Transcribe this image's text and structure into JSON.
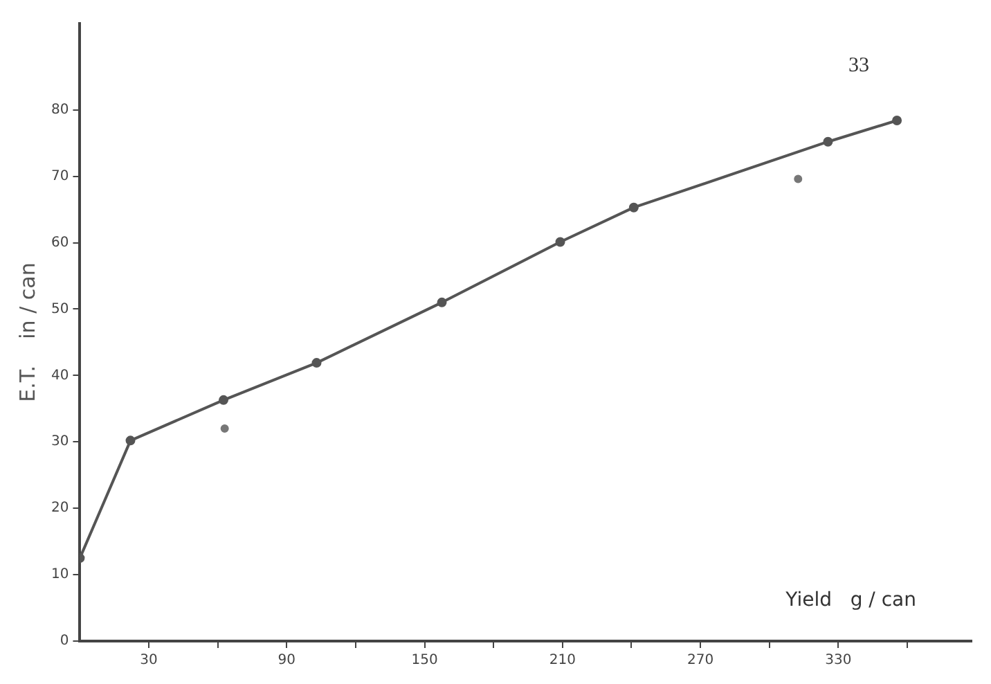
{
  "chart_data": {
    "type": "line",
    "xlabel": "Yield   g / can",
    "ylabel": "E.T.    in / can",
    "annotations": [
      "33"
    ],
    "x": [
      0,
      22,
      62.5,
      103,
      157.5,
      209,
      241,
      325.5,
      355.5
    ],
    "series": [
      {
        "color": "#555555",
        "values": [
          12.5,
          30.2,
          36.3,
          41.9,
          51,
          60.1,
          65.3,
          75.2,
          78.4
        ]
      },
      {
        "type": "scatter",
        "color": "#777777",
        "x": [
          63,
          312.5
        ],
        "values": [
          32,
          69.6
        ]
      }
    ],
    "xlim": [
      0,
      388
    ],
    "ylim": [
      0,
      93
    ],
    "xticks": [
      30,
      {
        "value": 60,
        "label": null
      },
      90,
      {
        "value": 120,
        "label": null
      },
      150,
      {
        "value": 180,
        "label": null
      },
      210,
      {
        "value": 240,
        "label": null
      },
      270,
      {
        "value": 300,
        "label": null
      },
      330,
      {
        "value": 360,
        "label": null
      }
    ],
    "yticks": [
      0,
      10,
      20,
      30,
      40,
      50,
      60,
      70,
      80
    ],
    "grid": false,
    "legend": false,
    "marker": "circle",
    "line_style": "solid"
  }
}
